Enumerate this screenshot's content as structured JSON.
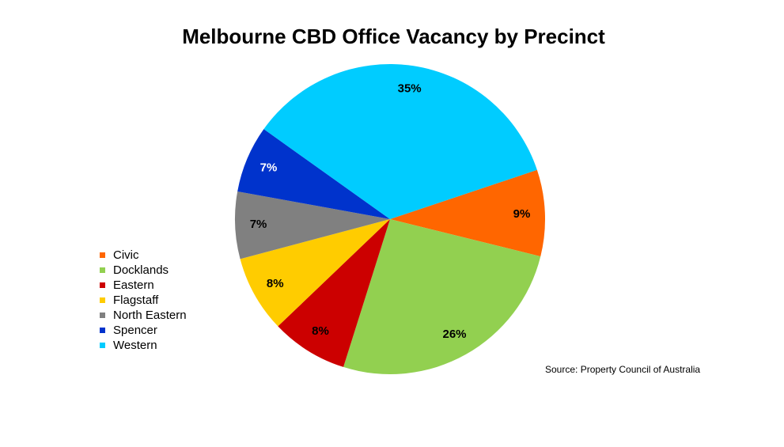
{
  "chart_data": {
    "type": "pie",
    "title": "Melbourne CBD Office Vacancy by Precinct",
    "source": "Source: Property Council of Australia",
    "legend_position": "left",
    "slices": [
      {
        "name": "Civic",
        "value": 9,
        "label": "9%",
        "color": "#ff6600",
        "label_color": "#000000"
      },
      {
        "name": "Docklands",
        "value": 26,
        "label": "26%",
        "color": "#92d050",
        "label_color": "#000000"
      },
      {
        "name": "Eastern",
        "value": 8,
        "label": "8%",
        "color": "#cc0000",
        "label_color": "#000000"
      },
      {
        "name": "Flagstaff",
        "value": 8,
        "label": "8%",
        "color": "#ffcc00",
        "label_color": "#000000"
      },
      {
        "name": "North Eastern",
        "value": 7,
        "label": "7%",
        "color": "#808080",
        "label_color": "#000000"
      },
      {
        "name": "Spencer",
        "value": 7,
        "label": "7%",
        "color": "#0033cc",
        "label_color": "#ffffff"
      },
      {
        "name": "Western",
        "value": 35,
        "label": "35%",
        "color": "#00ccff",
        "label_color": "#000000"
      }
    ]
  }
}
